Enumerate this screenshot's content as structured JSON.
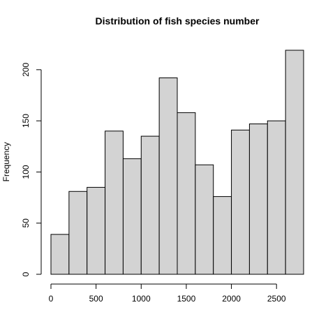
{
  "chart_data": {
    "type": "bar",
    "title": "Distribution of fish species number",
    "xlabel": "",
    "ylabel": "Frequency",
    "bin_edges": [
      0,
      200,
      400,
      600,
      800,
      1000,
      1200,
      1400,
      1600,
      1800,
      2000,
      2200,
      2400,
      2600,
      2800
    ],
    "values": [
      39,
      81,
      85,
      140,
      113,
      135,
      192,
      158,
      107,
      76,
      141,
      147,
      150,
      219
    ],
    "xlim": [
      0,
      2800
    ],
    "ylim": [
      0,
      219
    ],
    "x_ticks": [
      0,
      500,
      1000,
      1500,
      2000,
      2500
    ],
    "y_ticks": [
      0,
      50,
      100,
      150,
      200
    ],
    "x_tick_labels": [
      "0",
      "500",
      "1000",
      "1500",
      "2000",
      "2500"
    ],
    "y_tick_labels": [
      "0",
      "50",
      "100",
      "150",
      "200"
    ],
    "grid": false,
    "bar_color": "#d3d3d3",
    "edge_color": "#000000"
  }
}
